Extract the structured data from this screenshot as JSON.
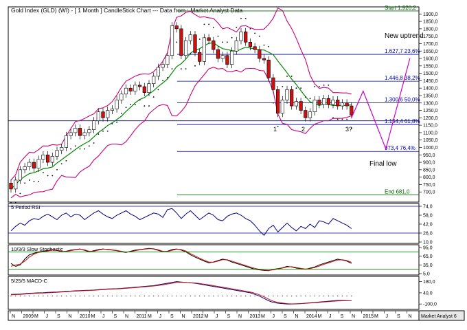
{
  "chart_data": [
    {
      "type": "candlestick",
      "title": "Gold Index (GLD) (WI) - [ 1 Month ] CandleStick Chart --- Data from : Market Analyst Data",
      "ylim": [
        650,
        1920
      ],
      "y_ticks": [
        "1900,0",
        "1850,0",
        "1800,0",
        "1750,0",
        "1700,0",
        "1650,0",
        "1600,0",
        "1550,0",
        "1500,0",
        "1450,0",
        "1400,0",
        "1350,0",
        "1300,0",
        "1250,0",
        "1200,0",
        "1150,0",
        "1100,0",
        "1050,0",
        "1000,0",
        "950,0",
        "900,0",
        "850,0",
        "800,0",
        "750,0",
        "700,0"
      ],
      "candles": [
        [
          760,
          720
        ],
        [
          720,
          780
        ],
        [
          780,
          850
        ],
        [
          850,
          870
        ],
        [
          870,
          900
        ],
        [
          900,
          860
        ],
        [
          860,
          920
        ],
        [
          920,
          950
        ],
        [
          950,
          900
        ],
        [
          900,
          940
        ],
        [
          940,
          980
        ],
        [
          980,
          1000
        ],
        [
          1000,
          1080
        ],
        [
          1080,
          1100
        ],
        [
          1100,
          1130
        ],
        [
          1130,
          1080
        ],
        [
          1080,
          1100
        ],
        [
          1100,
          1120
        ],
        [
          1120,
          1180
        ],
        [
          1180,
          1240
        ],
        [
          1240,
          1200
        ],
        [
          1200,
          1250
        ],
        [
          1250,
          1260
        ],
        [
          1260,
          1320
        ],
        [
          1320,
          1360
        ],
        [
          1360,
          1400
        ],
        [
          1400,
          1380
        ],
        [
          1380,
          1420
        ],
        [
          1420,
          1410
        ],
        [
          1410,
          1370
        ],
        [
          1370,
          1430
        ],
        [
          1430,
          1480
        ],
        [
          1480,
          1540
        ],
        [
          1540,
          1560
        ],
        [
          1560,
          1620
        ],
        [
          1620,
          1820
        ],
        [
          1820,
          1800
        ],
        [
          1800,
          1620
        ],
        [
          1620,
          1720
        ],
        [
          1720,
          1760
        ],
        [
          1760,
          1640
        ],
        [
          1640,
          1580
        ],
        [
          1580,
          1740
        ],
        [
          1740,
          1720
        ],
        [
          1720,
          1660
        ],
        [
          1660,
          1600
        ],
        [
          1600,
          1620
        ],
        [
          1620,
          1560
        ],
        [
          1560,
          1650
        ],
        [
          1650,
          1720
        ],
        [
          1720,
          1780
        ],
        [
          1780,
          1710
        ],
        [
          1710,
          1680
        ],
        [
          1680,
          1660
        ],
        [
          1660,
          1600
        ],
        [
          1600,
          1590
        ],
        [
          1590,
          1470
        ],
        [
          1470,
          1390
        ],
        [
          1390,
          1230
        ],
        [
          1230,
          1320
        ],
        [
          1320,
          1390
        ],
        [
          1390,
          1280
        ],
        [
          1280,
          1310
        ],
        [
          1310,
          1250
        ],
        [
          1250,
          1200
        ],
        [
          1200,
          1240
        ],
        [
          1240,
          1320
        ],
        [
          1320,
          1290
        ],
        [
          1290,
          1330
        ],
        [
          1330,
          1290
        ],
        [
          1290,
          1320
        ],
        [
          1320,
          1280
        ],
        [
          1280,
          1300
        ],
        [
          1300,
          1280
        ],
        [
          1280,
          1220
        ]
      ],
      "hline_levels": [
        {
          "value": 1920.2,
          "label": "Start 1.920,2",
          "color": "#006600"
        },
        {
          "value": 1627.7,
          "label": "1.627,7 23,6%",
          "color": "#0000aa"
        },
        {
          "value": 1446.8,
          "label": "1.446,8 38,2%",
          "color": "#0000aa"
        },
        {
          "value": 1300.6,
          "label": "1.300,6 50,0%",
          "color": "#0000aa"
        },
        {
          "value": 1154.4,
          "label": "1.154,4 61,8%",
          "color": "#0000aa"
        },
        {
          "value": 973.4,
          "label": "973,4 76,4%",
          "color": "#0000aa"
        },
        {
          "value": 681.0,
          "label": "End 681,0",
          "color": "#006600"
        }
      ],
      "support_level": 1180,
      "annotations": [
        "New uptrend",
        "Final low"
      ],
      "wave_labels": [
        "1",
        "2",
        "3?"
      ]
    },
    {
      "type": "line",
      "title": "5 Period RSI",
      "y_ticks": [
        "74,0",
        "58,0",
        "42,0",
        "26,0",
        "10,0"
      ],
      "ylim": [
        10,
        74
      ],
      "series": [
        {
          "values": [
            30,
            38,
            44,
            40,
            48,
            52,
            50,
            56,
            60,
            55,
            50,
            58,
            62,
            55,
            60,
            58,
            50,
            56,
            62,
            66,
            60,
            55,
            52,
            58,
            62,
            66,
            60,
            56,
            50,
            54,
            58,
            62,
            60,
            54,
            68,
            70,
            62,
            52,
            60,
            66,
            58,
            50,
            56,
            62,
            58,
            50,
            48,
            56,
            60,
            62,
            58,
            52,
            48,
            40,
            30,
            22,
            34,
            40,
            28,
            36,
            44,
            36,
            30,
            38,
            34,
            42,
            36,
            48,
            46,
            42,
            52,
            48,
            44,
            40,
            34
          ]
        }
      ]
    },
    {
      "type": "line",
      "title": "10/3/3 Slow Stochastic",
      "y_ticks": [
        "95,0",
        "65,0",
        "35,0",
        "5,0"
      ],
      "ylim": [
        5,
        95
      ],
      "series": [
        {
          "values": [
            40,
            30,
            35,
            55,
            70,
            75,
            80,
            82,
            85,
            88,
            85,
            80,
            82,
            86,
            88,
            90,
            85,
            80,
            84,
            88,
            90,
            88,
            86,
            84,
            80,
            78,
            82,
            86,
            88,
            90,
            92,
            90,
            85,
            80,
            82,
            88,
            90,
            86,
            80,
            70,
            62,
            55,
            48,
            42,
            45,
            50,
            55,
            52,
            45,
            40,
            35,
            30,
            25,
            20,
            18,
            16,
            15,
            20,
            22,
            25,
            30,
            28,
            24,
            22,
            20,
            24,
            28,
            35,
            40,
            45,
            50,
            55,
            52,
            48,
            40
          ]
        },
        {
          "values": [
            30,
            35,
            38,
            48,
            62,
            72,
            78,
            80,
            83,
            86,
            86,
            82,
            81,
            84,
            87,
            89,
            87,
            82,
            82,
            86,
            89,
            89,
            87,
            85,
            82,
            79,
            80,
            84,
            87,
            89,
            91,
            91,
            87,
            82,
            81,
            85,
            89,
            88,
            83,
            74,
            66,
            58,
            51,
            45,
            44,
            48,
            53,
            53,
            48,
            43,
            38,
            33,
            28,
            23,
            20,
            17,
            16,
            18,
            21,
            24,
            28,
            29,
            26,
            23,
            21,
            22,
            26,
            31,
            37,
            42,
            47,
            52,
            53,
            50,
            44
          ]
        }
      ]
    },
    {
      "type": "line",
      "title": "5/25/5 MACD-C",
      "y_ticks": [
        "180,0",
        "40,0",
        "-100,0"
      ],
      "ylim": [
        -150,
        220
      ],
      "series": [
        {
          "values": [
            20,
            22,
            25,
            30,
            35,
            38,
            40,
            42,
            45,
            48,
            50,
            55,
            60,
            62,
            65,
            68,
            70,
            72,
            75,
            80,
            85,
            88,
            90,
            92,
            95,
            100,
            105,
            110,
            115,
            120,
            125,
            130,
            140,
            150,
            160,
            170,
            180,
            175,
            170,
            165,
            160,
            150,
            140,
            130,
            120,
            110,
            100,
            90,
            80,
            70,
            60,
            50,
            40,
            20,
            0,
            -30,
            -60,
            -80,
            -90,
            -95,
            -100,
            -100,
            -98,
            -95,
            -90,
            -85,
            -80,
            -75,
            -70,
            -65,
            -60,
            -55,
            -55,
            -58,
            -60
          ]
        },
        {
          "values": [
            15,
            18,
            20,
            25,
            30,
            33,
            36,
            38,
            40,
            43,
            46,
            50,
            55,
            58,
            61,
            64,
            67,
            69,
            72,
            76,
            80,
            84,
            87,
            89,
            92,
            96,
            100,
            105,
            110,
            115,
            120,
            125,
            132,
            140,
            150,
            160,
            170,
            172,
            170,
            167,
            163,
            156,
            148,
            140,
            130,
            120,
            110,
            100,
            90,
            80,
            70,
            60,
            50,
            35,
            15,
            -10,
            -40,
            -65,
            -80,
            -88,
            -95,
            -98,
            -97,
            -95,
            -92,
            -88,
            -84,
            -80,
            -75,
            -70,
            -66,
            -62,
            -60,
            -60,
            -60
          ]
        }
      ]
    }
  ],
  "x_axis_labels": [
    "N",
    "2009",
    "M",
    "J",
    "S",
    "N",
    "2010",
    "M",
    "J",
    "S",
    "N",
    "2011",
    "M",
    "J",
    "S",
    "N",
    "2012",
    "M",
    "J",
    "S",
    "N",
    "2013",
    "M",
    "J",
    "S",
    "N",
    "2014",
    "M",
    "J",
    "S",
    "N",
    "2015",
    "M",
    "J",
    "S",
    "N"
  ],
  "watermark": "Market Analyst 6",
  "colors": {
    "up": "#ffffff",
    "down": "#cc1111",
    "bollinger": "#cc0077",
    "ma": "#008800",
    "sar": "#000000",
    "fib": "#0000aa",
    "rsi": "#000080",
    "signal": "#cc1111",
    "projection": "#cc00cc",
    "frame": "#000000"
  }
}
